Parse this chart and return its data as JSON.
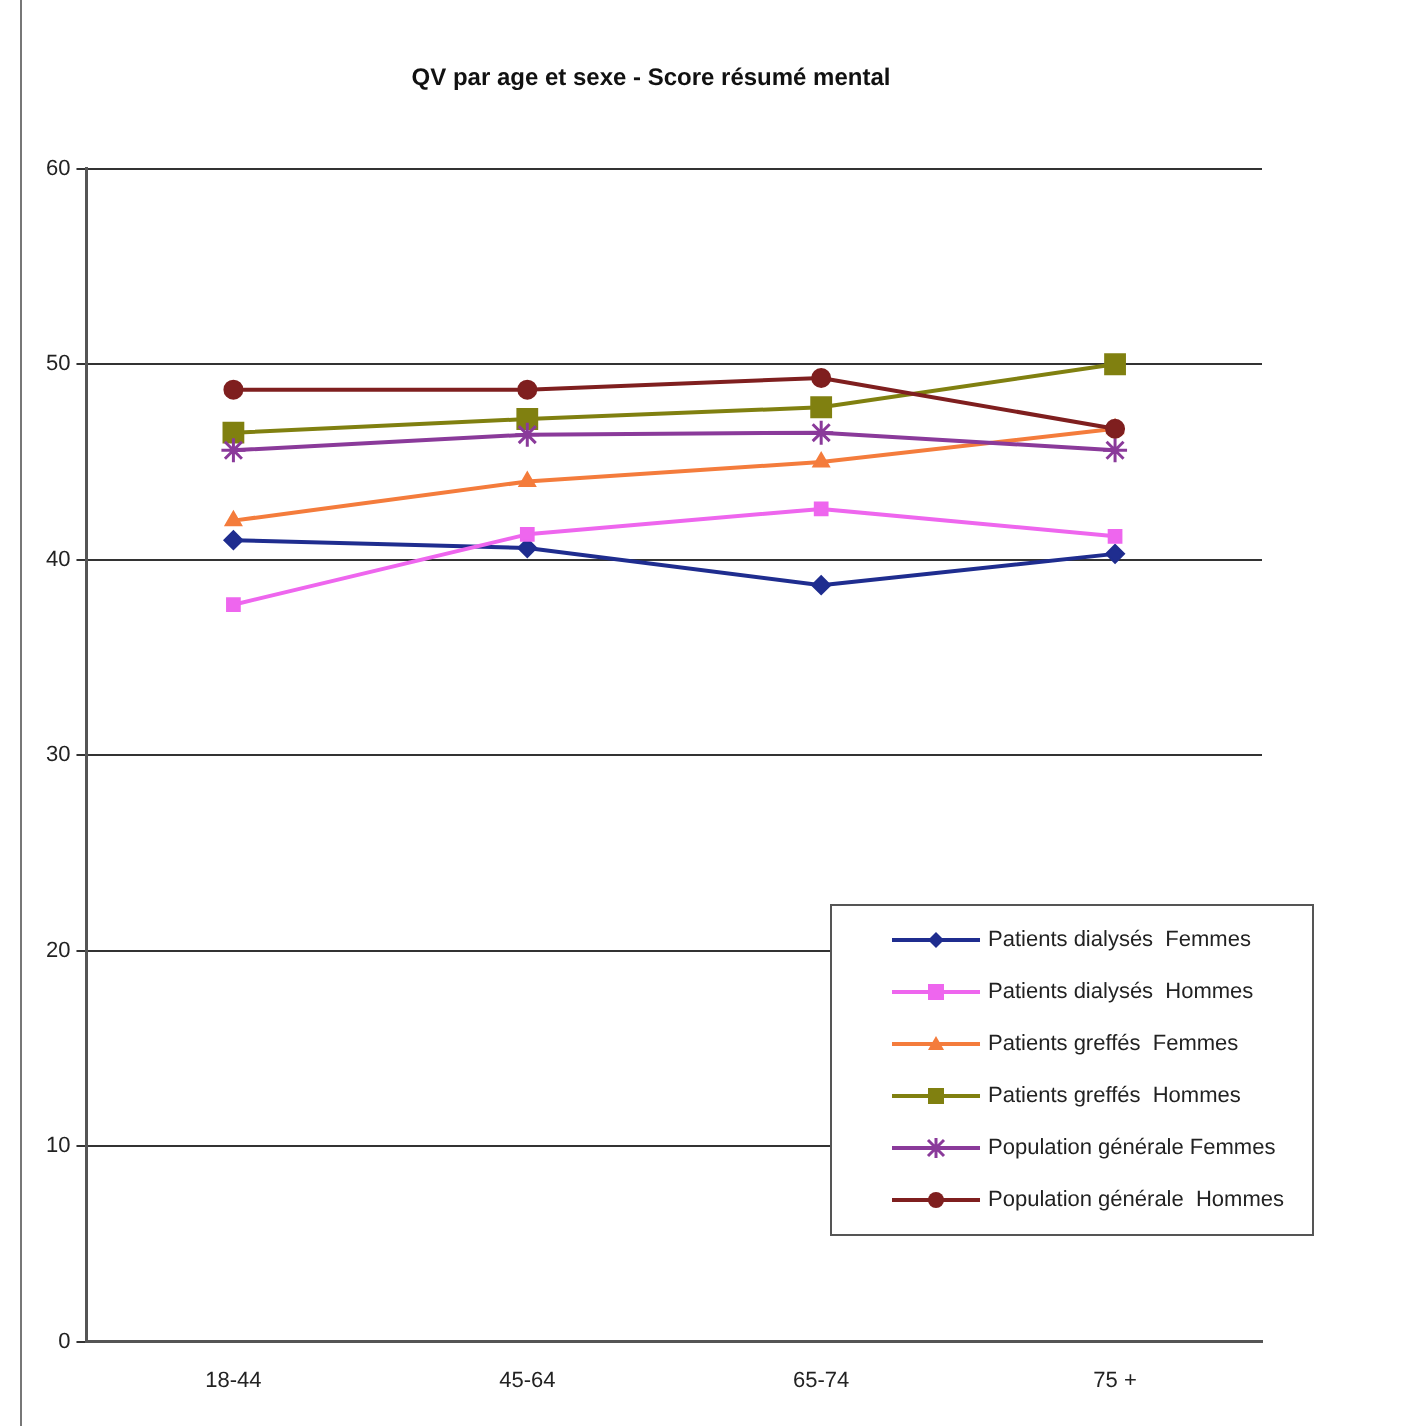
{
  "chart_data": {
    "type": "line",
    "title": "QV par age et sexe - Score résumé mental",
    "categories": [
      "18-44",
      "45-64",
      "65-74",
      "75 +"
    ],
    "series": [
      {
        "name": "Patients dialysés  Femmes",
        "color": "#1f2d8f",
        "marker": "diamond",
        "values": [
          41.0,
          40.6,
          38.7,
          40.3
        ]
      },
      {
        "name": "Patients dialysés  Hommes",
        "color": "#ee66ee",
        "marker": "square",
        "values": [
          37.7,
          41.3,
          42.6,
          41.2
        ]
      },
      {
        "name": "Patients greffés  Femmes",
        "color": "#f47c3c",
        "marker": "triangle",
        "values": [
          42.0,
          44.0,
          45.0,
          46.7
        ]
      },
      {
        "name": "Patients greffés  Hommes",
        "color": "#808010",
        "marker": "square",
        "values": [
          46.5,
          47.2,
          47.8,
          50.0
        ]
      },
      {
        "name": "Population générale Femmes",
        "color": "#8a3a9a",
        "marker": "cross",
        "values": [
          45.6,
          46.4,
          46.5,
          45.6
        ]
      },
      {
        "name": "Population générale  Hommes",
        "color": "#7f1f1f",
        "marker": "circle",
        "values": [
          48.7,
          48.7,
          49.3,
          46.7
        ]
      }
    ],
    "ylim": [
      0,
      60
    ],
    "yticks": [
      0,
      10,
      20,
      30,
      40,
      50,
      60
    ],
    "grid": "y",
    "legend": "bottom right",
    "line_style": "solid"
  }
}
